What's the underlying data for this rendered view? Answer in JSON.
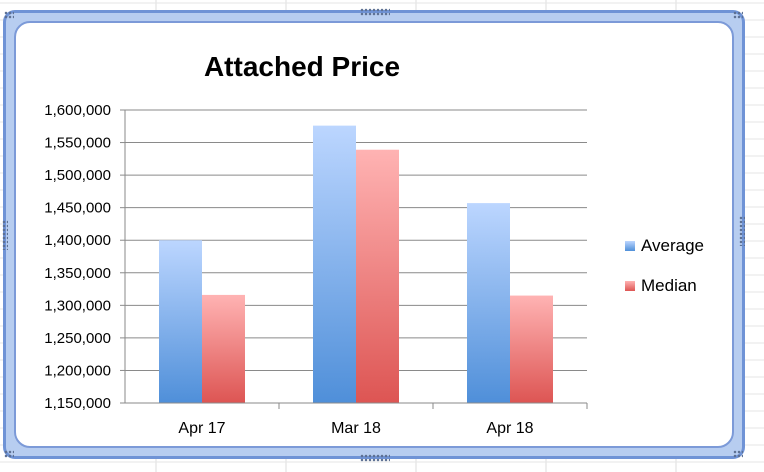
{
  "chart_data": {
    "type": "bar",
    "title": "Attached Price",
    "categories": [
      "Apr 17",
      "Mar 18",
      "Apr 18"
    ],
    "series": [
      {
        "name": "Average",
        "values": [
          1400000,
          1576000,
          1457000
        ]
      },
      {
        "name": "Median",
        "values": [
          1316000,
          1539000,
          1315000
        ]
      }
    ],
    "ylim": [
      1150000,
      1600000
    ],
    "yticks": [
      "1,600,000",
      "1,550,000",
      "1,500,000",
      "1,450,000",
      "1,400,000",
      "1,350,000",
      "1,300,000",
      "1,250,000",
      "1,200,000",
      "1,150,000"
    ],
    "ytick_values": [
      1600000,
      1550000,
      1500000,
      1450000,
      1400000,
      1350000,
      1300000,
      1250000,
      1200000,
      1150000
    ],
    "xlabel": "",
    "ylabel": "",
    "grid": true,
    "legend_position": "right",
    "colors": {
      "average_light": "#bcd6ff",
      "average_dark": "#4f8fd9",
      "median_light": "#ffb3b3",
      "median_dark": "#dd5553",
      "gridline": "#8a8a8a",
      "frame": "#6f93d6"
    }
  }
}
